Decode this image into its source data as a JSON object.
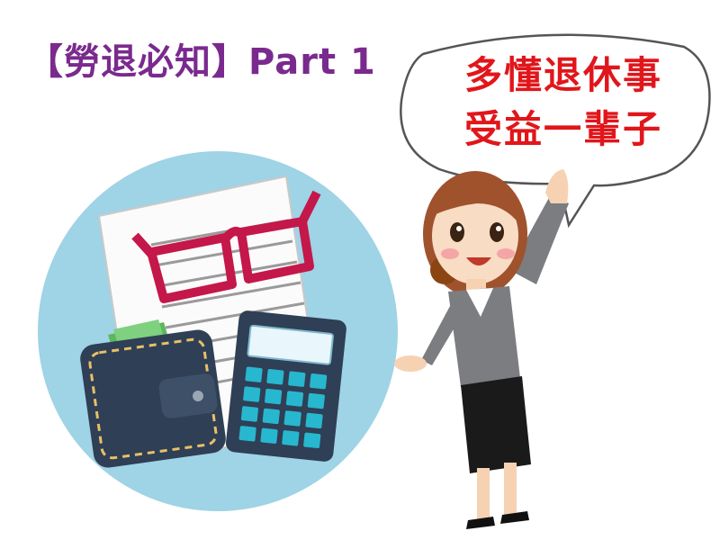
{
  "title": "【勞退必知】Part 1",
  "bubble": {
    "line1": "多懂退休事",
    "line2": "受益一輩子"
  },
  "colors": {
    "title": "#7a2a8e",
    "bubble_text": "#e0161b",
    "circle": "#9fd3e6",
    "glasses": "#c4174a",
    "wallet": "#2f3f55",
    "calculator_keys": "#27b7cf",
    "suit": "#7b7d80"
  },
  "icons": [
    "document-icon",
    "glasses-icon",
    "wallet-icon",
    "calculator-icon",
    "speech-bubble-icon",
    "businesswoman-illustration"
  ]
}
